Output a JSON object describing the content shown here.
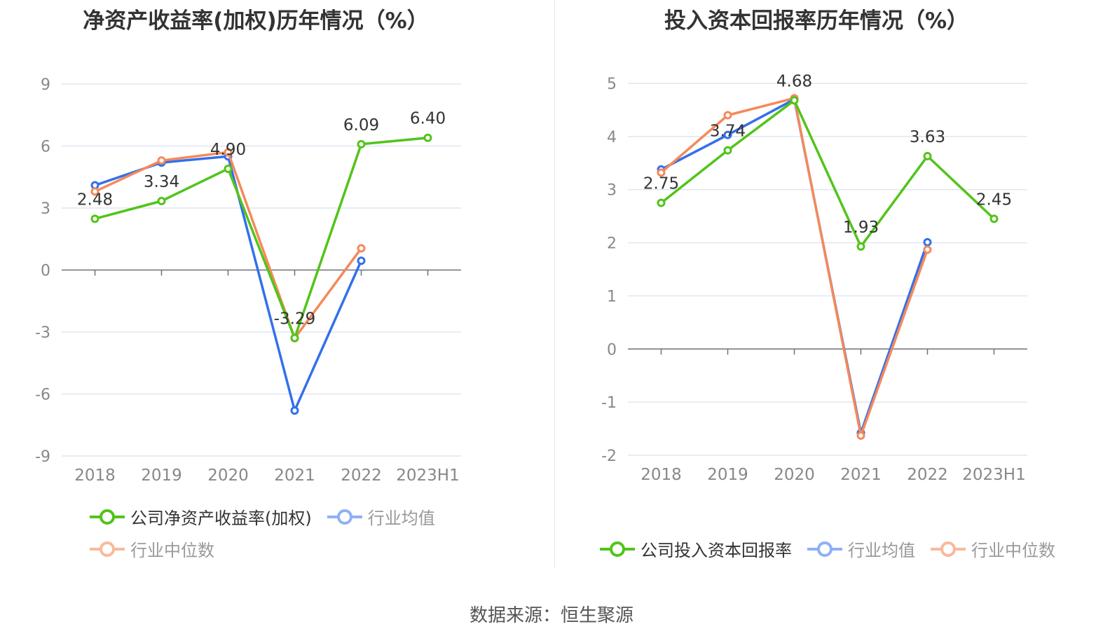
{
  "charts": [
    {
      "id": "left",
      "title": "净资产收益率(加权)历年情况（%）",
      "categories": [
        "2018",
        "2019",
        "2020",
        "2021",
        "2022",
        "2023H1"
      ],
      "yticks": [
        9,
        6,
        3,
        0,
        -3,
        -6,
        -9
      ],
      "ylim": [
        -9,
        9
      ],
      "series": [
        {
          "name": "公司净资产收益率(加权)",
          "color": "#52c41a",
          "values": [
            2.48,
            3.34,
            4.9,
            -3.29,
            6.09,
            6.4
          ],
          "labels": [
            "2.48",
            "3.34",
            "4.90",
            "-3.29",
            "6.09",
            "6.40"
          ]
        },
        {
          "name": "行业均值",
          "color": "#3370eb",
          "values": [
            4.1,
            5.2,
            5.5,
            -6.8,
            0.45,
            null
          ]
        },
        {
          "name": "行业中位数",
          "color": "#f5895a",
          "values": [
            3.8,
            5.3,
            5.7,
            -3.3,
            1.05,
            null
          ]
        }
      ]
    },
    {
      "id": "right",
      "title": "投入资本回报率历年情况（%）",
      "categories": [
        "2018",
        "2019",
        "2020",
        "2021",
        "2022",
        "2023H1"
      ],
      "yticks": [
        5,
        4,
        3,
        2,
        1,
        0,
        -1,
        -2
      ],
      "ylim": [
        -2,
        5
      ],
      "series": [
        {
          "name": "公司投入资本回报率",
          "color": "#52c41a",
          "values": [
            2.75,
            3.74,
            4.68,
            1.93,
            3.63,
            2.45
          ],
          "labels": [
            "2.75",
            "3.74",
            "4.68",
            "1.93",
            "3.63",
            "2.45"
          ]
        },
        {
          "name": "行业均值",
          "color": "#3370eb",
          "values": [
            3.38,
            4.03,
            4.7,
            -1.58,
            2.01,
            null
          ]
        },
        {
          "name": "行业中位数",
          "color": "#f5895a",
          "values": [
            3.32,
            4.4,
            4.72,
            -1.63,
            1.87,
            null
          ]
        }
      ]
    }
  ],
  "chart_data": [
    {
      "type": "line",
      "title": "净资产收益率(加权)历年情况（%）",
      "categories": [
        "2018",
        "2019",
        "2020",
        "2021",
        "2022",
        "2023H1"
      ],
      "ylim": [
        -9,
        9
      ],
      "series": [
        {
          "name": "公司净资产收益率(加权)",
          "values": [
            2.48,
            3.34,
            4.9,
            -3.29,
            6.09,
            6.4
          ]
        },
        {
          "name": "行业均值",
          "values": [
            4.1,
            5.2,
            5.5,
            -6.8,
            0.45,
            null
          ]
        },
        {
          "name": "行业中位数",
          "values": [
            3.8,
            5.3,
            5.7,
            -3.3,
            1.05,
            null
          ]
        }
      ]
    },
    {
      "type": "line",
      "title": "投入资本回报率历年情况（%）",
      "categories": [
        "2018",
        "2019",
        "2020",
        "2021",
        "2022",
        "2023H1"
      ],
      "ylim": [
        -2,
        5
      ],
      "series": [
        {
          "name": "公司投入资本回报率",
          "values": [
            2.75,
            3.74,
            4.68,
            1.93,
            3.63,
            2.45
          ]
        },
        {
          "name": "行业均值",
          "values": [
            3.38,
            4.03,
            4.7,
            -1.58,
            2.01,
            null
          ]
        },
        {
          "name": "行业中位数",
          "values": [
            3.32,
            4.4,
            4.72,
            -1.63,
            1.87,
            null
          ]
        }
      ]
    }
  ],
  "source": "数据来源：恒生聚源"
}
